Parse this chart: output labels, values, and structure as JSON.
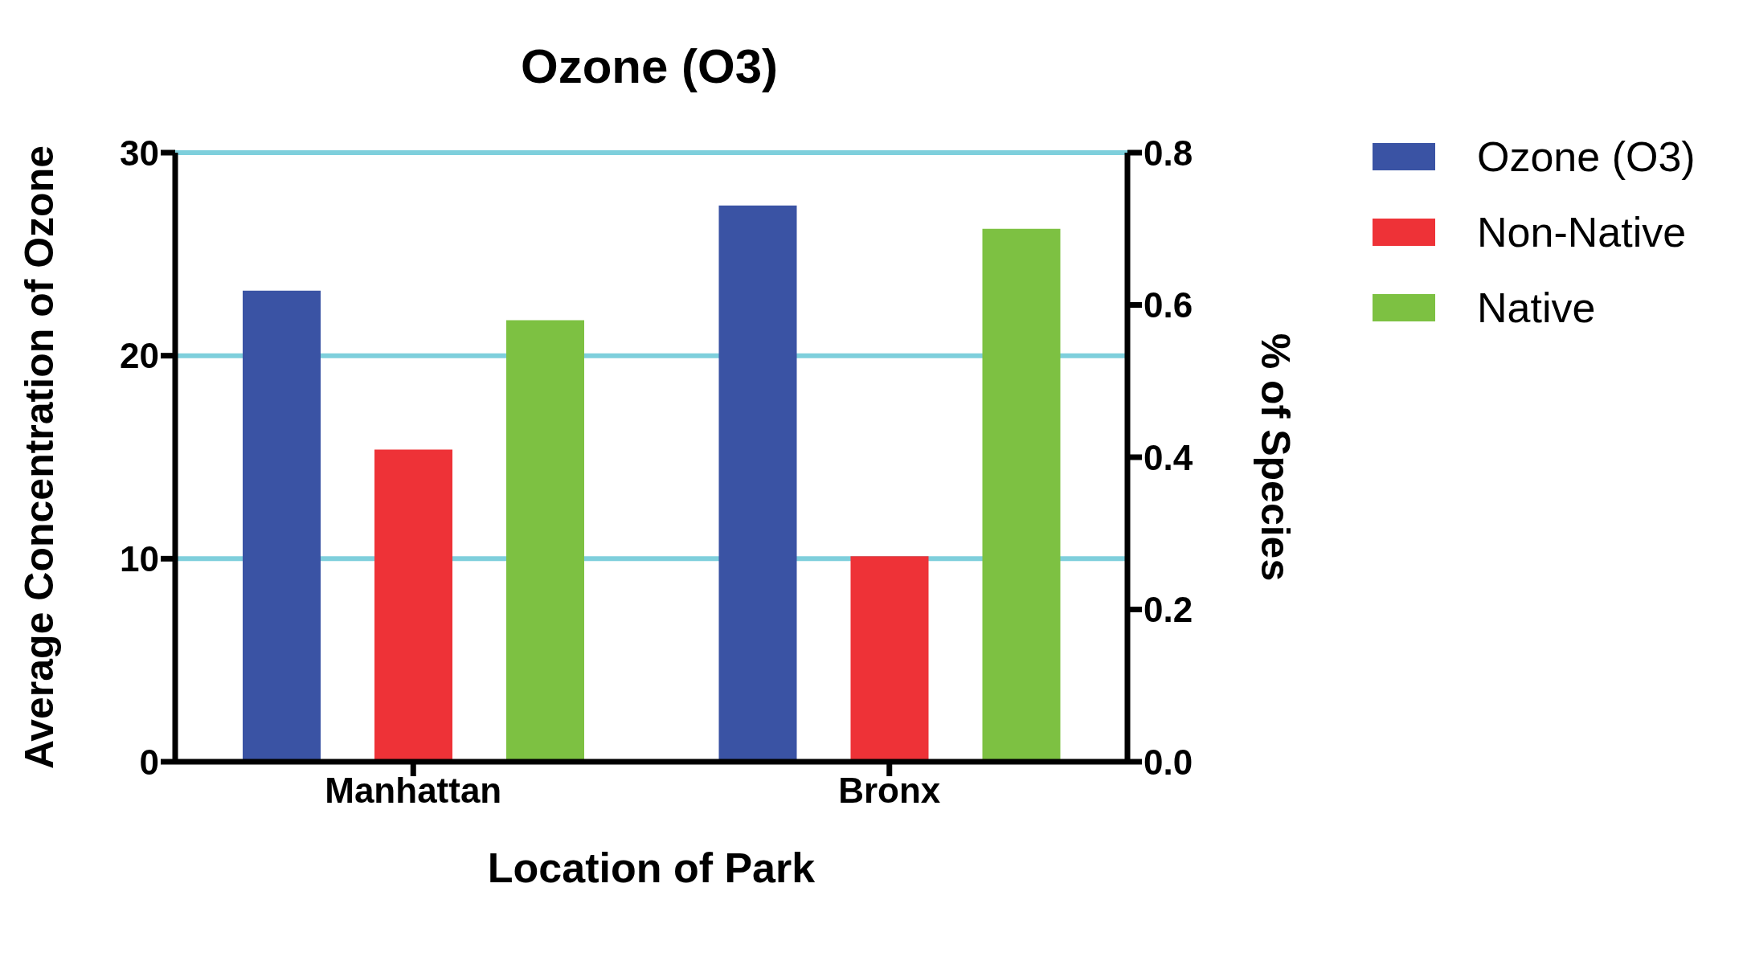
{
  "chart_data": {
    "type": "bar",
    "title": "Ozone (O3)",
    "xlabel": "Location of Park",
    "ylabel": "Average Concentration of Ozone",
    "y2label": "% of Species",
    "categories": [
      "Manhattan",
      "Bronx"
    ],
    "series": [
      {
        "name": "Ozone (O3)",
        "color": "#3a53a4",
        "values": [
          23.2,
          27.4
        ]
      },
      {
        "name": "Non-Native",
        "color": "#ee3237",
        "values": [
          0.41,
          0.27
        ],
        "axis": "y2"
      },
      {
        "name": "Native",
        "color": "#7dc142",
        "values": [
          0.58,
          0.7
        ],
        "axis": "y2"
      }
    ],
    "ylim": [
      0,
      30
    ],
    "yticks": [
      0,
      10,
      20,
      30
    ],
    "y2lim": [
      0,
      0.8
    ],
    "y2ticks": [
      {
        "value": 0,
        "label": "0.0"
      },
      {
        "value": 0.2,
        "label": "0.2"
      },
      {
        "value": 0.4,
        "label": "0.4"
      },
      {
        "value": 0.6,
        "label": "0.6"
      },
      {
        "value": 0.8,
        "label": "0.8"
      }
    ],
    "grid": "y",
    "legend": "top right"
  }
}
